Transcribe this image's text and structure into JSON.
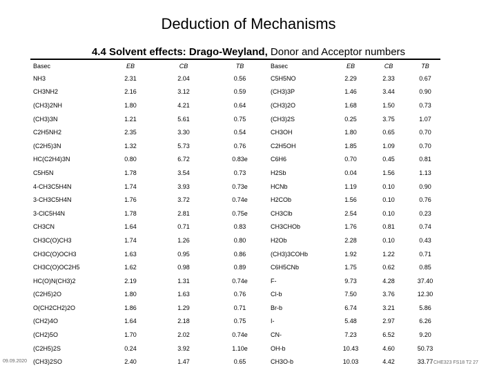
{
  "title": "Deduction of Mechanisms",
  "subtitle_bold": "4.4 Solvent effects: Drago-Weyland,",
  "subtitle_rest": " Donor and Acceptor numbers",
  "headers": [
    "Basec",
    "EB",
    "CB",
    "TB",
    "Basec",
    "EB",
    "CB",
    "TB"
  ],
  "rows": [
    [
      "NH3",
      "2.31",
      "2.04",
      "0.56",
      "C5H5NO",
      "2.29",
      "2.33",
      "0.67"
    ],
    [
      "CH3NH2",
      "2.16",
      "3.12",
      "0.59",
      "(CH3)3P",
      "1.46",
      "3.44",
      "0.90"
    ],
    [
      "(CH3)2NH",
      "1.80",
      "4.21",
      "0.64",
      "(CH3)2O",
      "1.68",
      "1.50",
      "0.73"
    ],
    [
      "(CH3)3N",
      "1.21",
      "5.61",
      "0.75",
      "(CH3)2S",
      "0.25",
      "3.75",
      "1.07"
    ],
    [
      "C2H5NH2",
      "2.35",
      "3.30",
      "0.54",
      "CH3OH",
      "1.80",
      "0.65",
      "0.70"
    ],
    [
      "(C2H5)3N",
      "1.32",
      "5.73",
      "0.76",
      "C2H5OH",
      "1.85",
      "1.09",
      "0.70"
    ],
    [
      "HC(C2H4)3N",
      "0.80",
      "6.72",
      "0.83e",
      "C6H6",
      "0.70",
      "0.45",
      "0.81"
    ],
    [
      "C5H5N",
      "1.78",
      "3.54",
      "0.73",
      "H2Sb",
      "0.04",
      "1.56",
      "1.13"
    ],
    [
      "4-CH3C5H4N",
      "1.74",
      "3.93",
      "0.73e",
      "HCNb",
      "1.19",
      "0.10",
      "0.90"
    ],
    [
      "3-CH3C5H4N",
      "1.76",
      "3.72",
      "0.74e",
      "H2COb",
      "1.56",
      "0.10",
      "0.76"
    ],
    [
      "3-ClC5H4N",
      "1.78",
      "2.81",
      "0.75e",
      "CH3Clb",
      "2.54",
      "0.10",
      "0.23"
    ],
    [
      "CH3CN",
      "1.64",
      "0.71",
      "0.83",
      "CH3CHOb",
      "1.76",
      "0.81",
      "0.74"
    ],
    [
      "CH3C(O)CH3",
      "1.74",
      "1.26",
      "0.80",
      "H2Ob",
      "2.28",
      "0.10",
      "0.43"
    ],
    [
      "CH3C(O)OCH3",
      "1.63",
      "0.95",
      "0.86",
      "(CH3)3COHb",
      "1.92",
      "1.22",
      "0.71"
    ],
    [
      "CH3C(O)OC2H5",
      "1.62",
      "0.98",
      "0.89",
      "C6H5CNb",
      "1.75",
      "0.62",
      "0.85"
    ],
    [
      "HC(O)N(CH3)2",
      "2.19",
      "1.31",
      "0.74e",
      "F-",
      "9.73",
      "4.28",
      "37.40"
    ],
    [
      "(C2H5)2O",
      "1.80",
      "1.63",
      "0.76",
      "Cl-b",
      "7.50",
      "3.76",
      "12.30"
    ],
    [
      "O(CH2CH2)2O",
      "1.86",
      "1.29",
      "0.71",
      "Br-b",
      "6.74",
      "3.21",
      "5.86"
    ],
    [
      "(CH2)4O",
      "1.64",
      "2.18",
      "0.75",
      "I-",
      "5.48",
      "2.97",
      "6.26"
    ],
    [
      "(CH2)5O",
      "1.70",
      "2.02",
      "0.74e",
      "CN-",
      "7.23",
      "6.52",
      "9.20"
    ],
    [
      "(C2H5)2S",
      "0.24",
      "3.92",
      "1.10e",
      "OH-b",
      "10.43",
      "4.60",
      "50.73"
    ],
    [
      "(CH3)2SO",
      "2.40",
      "1.47",
      "0.65",
      "CH3O-b",
      "10.03",
      "4.42",
      "33.77"
    ]
  ],
  "footer_left": "09.09.2020",
  "footer_right": "CHE323 FS18 T2 27"
}
